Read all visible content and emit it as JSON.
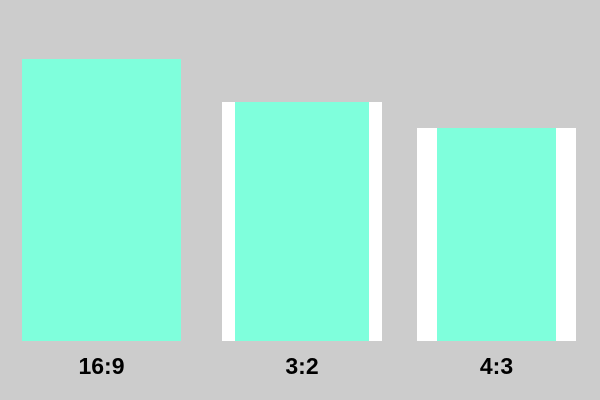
{
  "frames": [
    {
      "label": "16:9"
    },
    {
      "label": "3:2"
    },
    {
      "label": "4:3"
    }
  ],
  "colors": {
    "background": "#cccccc",
    "frame": "#ffffff",
    "content": "#7fffdc",
    "label": "#000000"
  }
}
